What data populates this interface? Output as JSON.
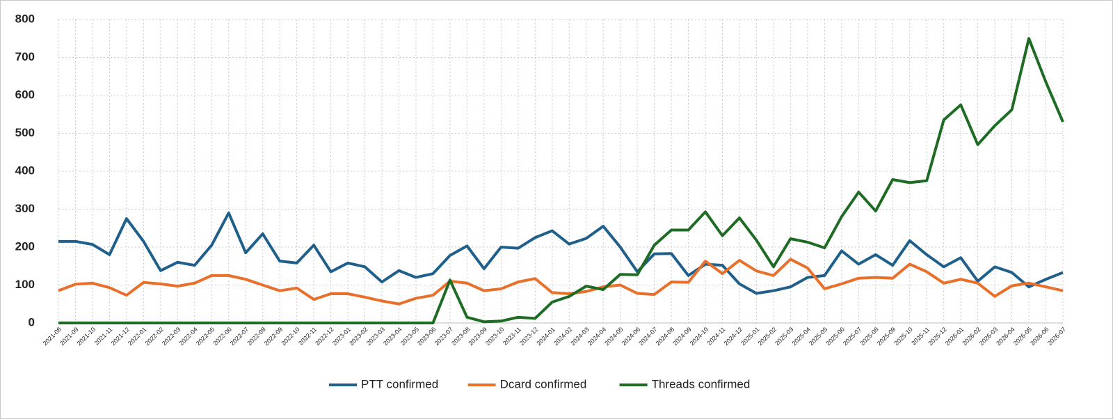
{
  "chart_data": {
    "type": "line",
    "categories": [
      "2021-08",
      "2021-09",
      "2021-10",
      "2021-11",
      "2021-12",
      "2022-01",
      "2022-02",
      "2022-03",
      "2022-04",
      "2022-05",
      "2022-06",
      "2022-07",
      "2022-08",
      "2022-09",
      "2022-10",
      "2022-11",
      "2022-12",
      "2023-01",
      "2023-02",
      "2023-03",
      "2023-04",
      "2023-05",
      "2023-06",
      "2023-07",
      "2023-08",
      "2023-09",
      "2023-10",
      "2023-11",
      "2023-12",
      "2024-01",
      "2024-02",
      "2024-03",
      "2024-04",
      "2024-05",
      "2024-06",
      "2024-07",
      "2024-08",
      "2024-09",
      "2024-10",
      "2024-11",
      "2024-12",
      "2025-01",
      "2025-02",
      "2025-03",
      "2025-04",
      "2025-05",
      "2025-06",
      "2025-07",
      "2025-08",
      "2025-09",
      "2025-10",
      "2025-11",
      "2025-12",
      "2026-01",
      "2026-02",
      "2026-03",
      "2026-04",
      "2026-05",
      "2026-06",
      "2026-07"
    ],
    "series": [
      {
        "name": "PTT confirmed",
        "color": "#1f5f8b",
        "values": [
          215,
          215,
          207,
          180,
          275,
          215,
          138,
          160,
          152,
          205,
          290,
          185,
          235,
          163,
          158,
          205,
          135,
          158,
          148,
          108,
          138,
          120,
          130,
          178,
          203,
          143,
          200,
          197,
          225,
          243,
          208,
          223,
          255,
          200,
          135,
          182,
          183,
          125,
          155,
          152,
          103,
          78,
          85,
          95,
          120,
          125,
          190,
          155,
          180,
          152,
          217,
          180,
          148,
          172,
          110,
          148,
          133,
          95,
          115,
          133
        ]
      },
      {
        "name": "Dcard confirmed",
        "color": "#e8702a",
        "values": [
          85,
          102,
          105,
          93,
          73,
          107,
          103,
          97,
          105,
          125,
          125,
          115,
          100,
          85,
          92,
          62,
          77,
          77,
          68,
          58,
          50,
          65,
          73,
          110,
          105,
          85,
          90,
          108,
          117,
          80,
          77,
          83,
          95,
          100,
          78,
          75,
          108,
          107,
          163,
          130,
          165,
          137,
          125,
          168,
          145,
          90,
          103,
          118,
          120,
          118,
          155,
          135,
          105,
          115,
          105,
          70,
          98,
          105,
          95,
          85
        ]
      },
      {
        "name": "Threads confirmed",
        "color": "#1e6b24",
        "values": [
          0,
          0,
          0,
          0,
          0,
          0,
          0,
          0,
          0,
          0,
          0,
          0,
          0,
          0,
          0,
          0,
          0,
          0,
          0,
          0,
          0,
          0,
          0,
          113,
          15,
          3,
          5,
          15,
          12,
          55,
          70,
          97,
          88,
          128,
          127,
          205,
          245,
          245,
          293,
          230,
          277,
          218,
          148,
          222,
          213,
          198,
          280,
          345,
          295,
          378,
          370,
          375,
          535,
          575,
          470,
          520,
          562,
          750,
          635,
          530
        ]
      }
    ],
    "ylim": [
      0,
      800
    ],
    "yticks": [
      0,
      100,
      200,
      300,
      400,
      500,
      600,
      700,
      800
    ],
    "grid": true,
    "legend": "bottom"
  }
}
